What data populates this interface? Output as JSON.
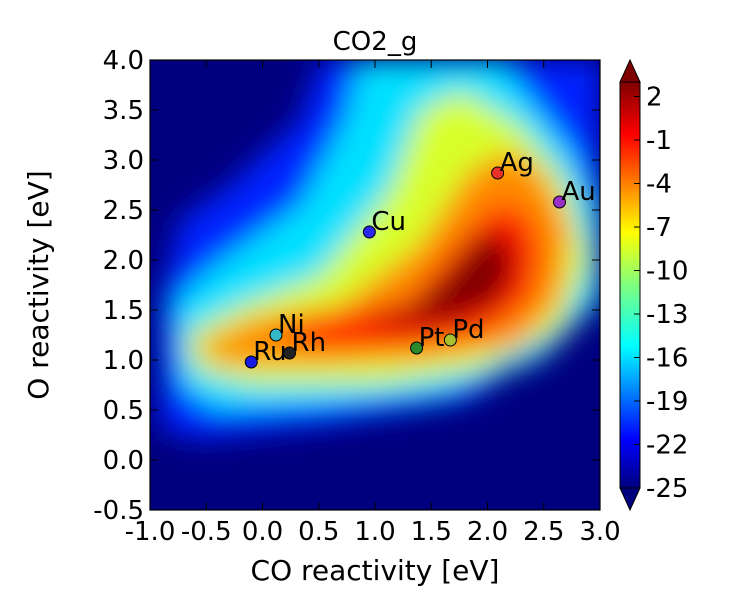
{
  "chart_data": {
    "type": "heatmap",
    "title": "CO2_g",
    "xlabel": "CO reactivity [eV]",
    "ylabel": "O reactivity [eV]",
    "xlim": [
      -1.0,
      3.0
    ],
    "ylim": [
      -0.5,
      4.0
    ],
    "x_ticks": [
      "-1.0",
      "-0.5",
      "0.0",
      "0.5",
      "1.0",
      "1.5",
      "2.0",
      "2.5",
      "3.0"
    ],
    "y_ticks": [
      "-0.5",
      "0.0",
      "0.5",
      "1.0",
      "1.5",
      "2.0",
      "2.5",
      "3.0",
      "3.5",
      "4.0"
    ],
    "colorbar": {
      "min": -25,
      "max": 3,
      "ticks": [
        "2",
        "-1",
        "-4",
        "-7",
        "-10",
        "-13",
        "-16",
        "-19",
        "-22",
        "-25"
      ],
      "colormap": "jet",
      "extend": "both"
    },
    "points": [
      {
        "label": "Ag",
        "x": 2.09,
        "y": 2.87,
        "color": "#e8322a"
      },
      {
        "label": "Au",
        "x": 2.64,
        "y": 2.58,
        "color": "#9b30c6"
      },
      {
        "label": "Cu",
        "x": 0.95,
        "y": 2.28,
        "color": "#2a2aee"
      },
      {
        "label": "Ni",
        "x": 0.12,
        "y": 1.25,
        "color": "#35b8c8"
      },
      {
        "label": "Rh",
        "x": 0.24,
        "y": 1.07,
        "color": "#222222"
      },
      {
        "label": "Ru",
        "x": -0.1,
        "y": 0.98,
        "color": "#1a1ae0"
      },
      {
        "label": "Pt",
        "x": 1.37,
        "y": 1.12,
        "color": "#2a8a2a"
      },
      {
        "label": "Pd",
        "x": 1.67,
        "y": 1.2,
        "color": "#a9c22f"
      }
    ]
  }
}
